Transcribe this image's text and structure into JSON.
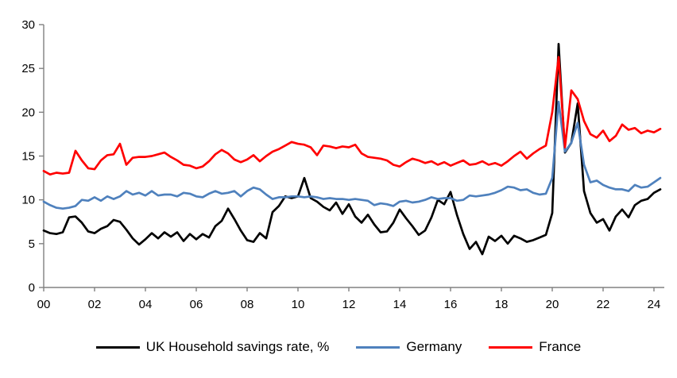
{
  "chart_data": {
    "type": "line",
    "title": "",
    "xlabel": "",
    "ylabel": "",
    "x_unit": "quarterly, 2000Q1 - 2024Q2",
    "x_tick_labels": [
      "00",
      "02",
      "04",
      "06",
      "08",
      "10",
      "12",
      "14",
      "16",
      "18",
      "20",
      "22",
      "24"
    ],
    "y_ticks": [
      0,
      5,
      10,
      15,
      20,
      25,
      30
    ],
    "ylim": [
      0,
      30
    ],
    "grid": false,
    "legend_position": "bottom",
    "axis_color": "#808080",
    "series": [
      {
        "name": "UK Household savings rate, %",
        "color": "#000000",
        "values": [
          6.5,
          6.2,
          6.1,
          6.3,
          8.0,
          8.1,
          7.4,
          6.4,
          6.2,
          6.7,
          7.0,
          7.7,
          7.5,
          6.6,
          5.6,
          4.9,
          5.5,
          6.2,
          5.6,
          6.3,
          5.8,
          6.3,
          5.3,
          6.1,
          5.5,
          6.1,
          5.7,
          7.0,
          7.6,
          9.0,
          7.8,
          6.5,
          5.4,
          5.2,
          6.2,
          5.6,
          8.6,
          9.3,
          10.4,
          10.2,
          10.4,
          12.5,
          10.2,
          9.8,
          9.2,
          8.8,
          9.7,
          8.4,
          9.5,
          8.1,
          7.4,
          8.3,
          7.2,
          6.3,
          6.4,
          7.4,
          8.9,
          7.9,
          7.0,
          6.0,
          6.5,
          8.0,
          10.0,
          9.5,
          10.9,
          8.3,
          6.1,
          4.4,
          5.2,
          3.8,
          5.8,
          5.3,
          5.9,
          5.0,
          5.9,
          5.6,
          5.2,
          5.4,
          5.7,
          6.0,
          8.5,
          27.8,
          15.4,
          16.5,
          21.0,
          11.0,
          8.5,
          7.4,
          7.8,
          6.5,
          8.1,
          8.9,
          8.0,
          9.4,
          9.9,
          10.1,
          10.8,
          11.2
        ]
      },
      {
        "name": "Germany",
        "color": "#4F81BD",
        "values": [
          9.8,
          9.4,
          9.1,
          9.0,
          9.1,
          9.3,
          10.0,
          9.9,
          10.3,
          9.9,
          10.4,
          10.1,
          10.4,
          11.0,
          10.6,
          10.8,
          10.5,
          11.0,
          10.5,
          10.6,
          10.6,
          10.4,
          10.8,
          10.7,
          10.4,
          10.3,
          10.7,
          11.0,
          10.7,
          10.8,
          11.0,
          10.4,
          11.0,
          11.4,
          11.2,
          10.6,
          10.1,
          10.3,
          10.3,
          10.4,
          10.4,
          10.3,
          10.4,
          10.3,
          10.1,
          10.2,
          10.1,
          10.1,
          10.0,
          10.1,
          10.0,
          9.9,
          9.4,
          9.6,
          9.5,
          9.3,
          9.8,
          9.9,
          9.7,
          9.8,
          10.0,
          10.3,
          10.1,
          10.2,
          10.2,
          9.9,
          10.0,
          10.5,
          10.4,
          10.5,
          10.6,
          10.8,
          11.1,
          11.5,
          11.4,
          11.1,
          11.2,
          10.8,
          10.6,
          10.7,
          12.5,
          21.2,
          15.5,
          16.5,
          18.8,
          14.0,
          12.0,
          12.2,
          11.7,
          11.4,
          11.2,
          11.2,
          11.0,
          11.7,
          11.4,
          11.5,
          12.0,
          12.5
        ]
      },
      {
        "name": "France",
        "color": "#FF0000",
        "values": [
          13.3,
          12.9,
          13.1,
          13.0,
          13.1,
          15.6,
          14.5,
          13.6,
          13.5,
          14.5,
          15.1,
          15.2,
          16.4,
          14.0,
          14.8,
          14.9,
          14.9,
          15.0,
          15.2,
          15.4,
          14.9,
          14.5,
          14.0,
          13.9,
          13.6,
          13.8,
          14.4,
          15.2,
          15.7,
          15.3,
          14.6,
          14.3,
          14.6,
          15.1,
          14.4,
          15.0,
          15.5,
          15.8,
          16.2,
          16.6,
          16.4,
          16.3,
          16.0,
          15.1,
          16.2,
          16.1,
          15.9,
          16.1,
          16.0,
          16.3,
          15.3,
          14.9,
          14.8,
          14.7,
          14.5,
          14.0,
          13.8,
          14.3,
          14.7,
          14.5,
          14.2,
          14.4,
          14.0,
          14.3,
          13.9,
          14.2,
          14.5,
          14.0,
          14.1,
          14.4,
          14.0,
          14.2,
          13.9,
          14.4,
          15.0,
          15.5,
          14.7,
          15.3,
          15.8,
          16.2,
          20.0,
          26.3,
          16.0,
          22.5,
          21.5,
          19.0,
          17.5,
          17.1,
          17.9,
          16.7,
          17.3,
          18.6,
          18.0,
          18.2,
          17.6,
          17.9,
          17.7,
          18.1
        ]
      }
    ]
  },
  "legend": {
    "items": [
      {
        "label": "UK Household savings rate, %",
        "color": "#000000"
      },
      {
        "label": "Germany",
        "color": "#4F81BD"
      },
      {
        "label": "France",
        "color": "#FF0000"
      }
    ]
  }
}
